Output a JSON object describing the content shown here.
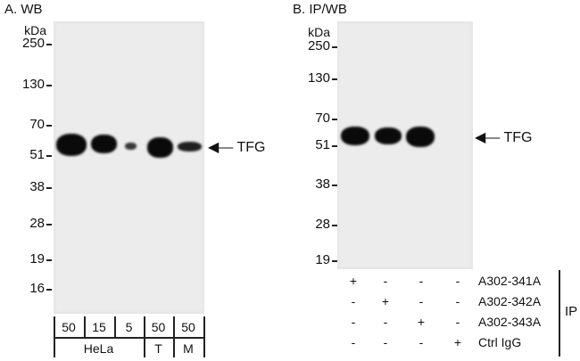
{
  "panel_a": {
    "title": "A. WB",
    "unit": "kDa",
    "markers": [
      "250",
      "130",
      "70",
      "51",
      "38",
      "28",
      "19",
      "16"
    ],
    "target": "TFG",
    "amounts": [
      "50",
      "15",
      "5",
      "50",
      "50"
    ],
    "cell_lines": [
      "HeLa",
      "T",
      "M"
    ]
  },
  "panel_b": {
    "title": "B. IP/WB",
    "unit": "kDa",
    "markers": [
      "250",
      "130",
      "70",
      "51",
      "38",
      "28",
      "19"
    ],
    "target": "TFG",
    "rows": [
      {
        "label": "A302-341A",
        "signs": [
          "+",
          "-",
          "-",
          "-"
        ]
      },
      {
        "label": "A302-342A",
        "signs": [
          "-",
          "+",
          "-",
          "-"
        ]
      },
      {
        "label": "A302-343A",
        "signs": [
          "-",
          "-",
          "+",
          "-"
        ]
      },
      {
        "label": "Ctrl IgG",
        "signs": [
          "-",
          "-",
          "-",
          "+"
        ]
      }
    ],
    "group_label": "IP"
  }
}
